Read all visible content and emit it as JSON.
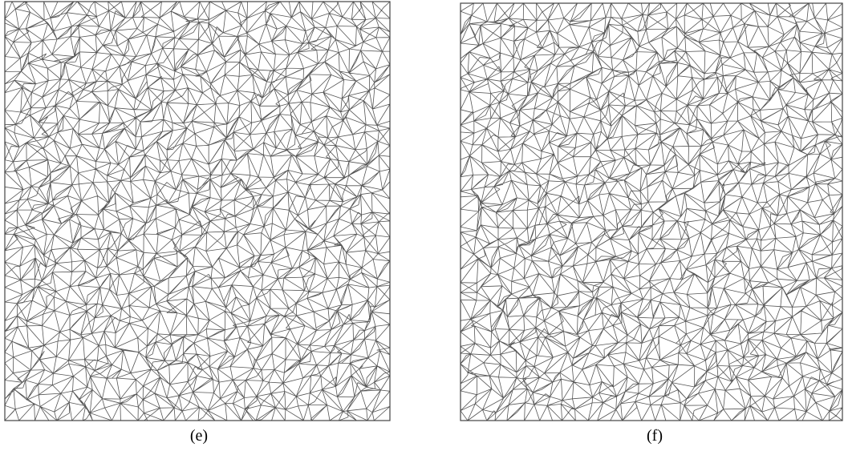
{
  "figure": {
    "panels": [
      {
        "id": "e",
        "caption": "(e)"
      },
      {
        "id": "f",
        "caption": "(f)"
      }
    ]
  },
  "style": {
    "line_color": "#555555",
    "frame_color": "#444444",
    "background": "#ffffff"
  }
}
